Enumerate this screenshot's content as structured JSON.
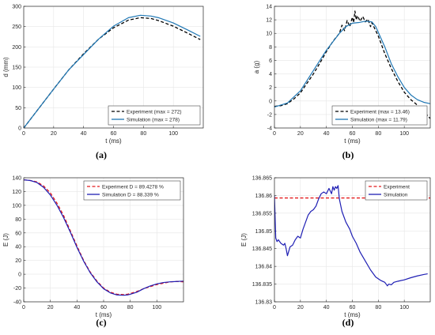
{
  "chart_data": [
    {
      "type": "line",
      "caption": "(a)",
      "xlabel": "t (ms)",
      "ylabel": "d (mm)",
      "xlim": [
        0,
        120
      ],
      "ylim": [
        0,
        300
      ],
      "xticks": [
        "0",
        "20",
        "40",
        "60",
        "80",
        "100"
      ],
      "yticks": [
        "0",
        "50",
        "100",
        "150",
        "200",
        "250",
        "300"
      ],
      "grid": true,
      "legend_position": "bottom-right",
      "series": [
        {
          "name": "Experiment (max = 272)",
          "color": "#000000",
          "style": "dashed",
          "x": [
            0,
            10,
            20,
            30,
            40,
            50,
            60,
            70,
            78,
            85,
            90,
            100,
            110,
            118
          ],
          "y": [
            0,
            48,
            96,
            143,
            183,
            219,
            247,
            266,
            272,
            270,
            265,
            251,
            233,
            218
          ]
        },
        {
          "name": "Simulation (max = 278)",
          "color": "#1f77b4",
          "style": "solid",
          "x": [
            0,
            10,
            20,
            30,
            40,
            50,
            60,
            70,
            78,
            85,
            90,
            100,
            110,
            118
          ],
          "y": [
            0,
            48,
            96,
            143,
            181,
            219,
            251,
            272,
            278,
            276,
            272,
            259,
            241,
            226
          ]
        }
      ]
    },
    {
      "type": "line",
      "caption": "(b)",
      "xlabel": "t (ms)",
      "ylabel": "a (g)",
      "xlim": [
        0,
        120
      ],
      "ylim": [
        -4,
        14
      ],
      "xticks": [
        "0",
        "20",
        "40",
        "60",
        "80",
        "100"
      ],
      "yticks": [
        "-4",
        "-2",
        "0",
        "2",
        "4",
        "6",
        "8",
        "10",
        "12",
        "14"
      ],
      "grid": true,
      "legend_position": "bottom-right",
      "series": [
        {
          "name": "Experiment (max = 13.46)",
          "color": "#000000",
          "style": "dashed",
          "x": [
            0,
            5,
            10,
            15,
            20,
            25,
            30,
            35,
            40,
            45,
            50,
            52,
            54,
            56,
            58,
            60,
            61,
            62,
            63,
            64,
            66,
            68,
            70,
            72,
            74,
            75,
            80,
            85,
            90,
            95,
            100,
            105,
            110,
            115,
            120
          ],
          "y": [
            -0.8,
            -0.7,
            -0.4,
            0.3,
            1.2,
            2.6,
            4.0,
            5.6,
            7.3,
            8.8,
            10.0,
            11.2,
            10.4,
            11.9,
            11.0,
            12.4,
            11.6,
            13.3,
            12.0,
            12.6,
            11.8,
            12.5,
            11.7,
            12.1,
            11.0,
            11.6,
            9.6,
            7.0,
            4.8,
            2.9,
            1.3,
            0.2,
            -0.6,
            -1.6,
            -2.6
          ]
        },
        {
          "name": "Simulation (max = 11.79)",
          "color": "#1f77b4",
          "style": "solid",
          "x": [
            0,
            10,
            20,
            30,
            40,
            50,
            55,
            60,
            65,
            70,
            75,
            78,
            85,
            90,
            95,
            100,
            105,
            110,
            115,
            120
          ],
          "y": [
            -0.9,
            -0.3,
            1.5,
            4.5,
            7.5,
            10.0,
            11.0,
            11.5,
            11.6,
            11.8,
            11.7,
            11.0,
            8.0,
            5.5,
            3.6,
            2.0,
            0.9,
            0.2,
            -0.2,
            -0.4
          ]
        }
      ]
    },
    {
      "type": "line",
      "caption": "(c)",
      "xlabel": "t (ms)",
      "ylabel": "E (J)",
      "xlim": [
        0,
        120
      ],
      "ylim": [
        -40,
        140
      ],
      "xticks": [
        "0",
        "20",
        "40",
        "60",
        "80",
        "100"
      ],
      "yticks": [
        "-40",
        "-20",
        "0",
        "20",
        "40",
        "60",
        "80",
        "100",
        "120",
        "140"
      ],
      "grid": true,
      "legend_position": "top-right",
      "series": [
        {
          "name": "Experiment D = 89.4278 %",
          "color": "#e41a1c",
          "style": "dashed",
          "x": [
            0,
            5,
            10,
            15,
            20,
            25,
            30,
            35,
            40,
            45,
            50,
            55,
            60,
            65,
            70,
            75,
            78,
            80,
            85,
            90,
            95,
            100,
            105,
            110,
            115,
            120
          ],
          "y": [
            137,
            136,
            134,
            128,
            118,
            103,
            85,
            63,
            41,
            20,
            3,
            -10,
            -20,
            -26,
            -29,
            -29.5,
            -29,
            -28,
            -25,
            -21,
            -18,
            -15,
            -13,
            -11,
            -10.5,
            -11
          ]
        },
        {
          "name": "Simulation D = 88.339 %",
          "color": "#1f1fb4",
          "style": "solid",
          "x": [
            0,
            5,
            10,
            15,
            20,
            25,
            30,
            35,
            40,
            45,
            50,
            55,
            60,
            65,
            70,
            75,
            78,
            80,
            85,
            90,
            95,
            100,
            105,
            110,
            115,
            120
          ],
          "y": [
            137,
            136,
            133,
            126,
            115,
            100,
            82,
            61,
            39,
            19,
            2,
            -11,
            -21,
            -27,
            -30,
            -30.5,
            -30,
            -29,
            -26,
            -21,
            -17,
            -14,
            -12,
            -11,
            -10.5,
            -10
          ]
        }
      ]
    },
    {
      "type": "line",
      "caption": "(d)",
      "xlabel": "t (ms)",
      "ylabel": "E (J)",
      "xlim": [
        0,
        120
      ],
      "ylim": [
        136.83,
        136.865
      ],
      "xticks": [
        "0",
        "20",
        "40",
        "60",
        "80",
        "100"
      ],
      "yticks": [
        "136.83",
        "136.835",
        "136.84",
        "136.845",
        "136.85",
        "136.855",
        "136.86",
        "136.865"
      ],
      "grid": true,
      "legend_position": "top-right",
      "series": [
        {
          "name": "Experiment",
          "color": "#e41a1c",
          "style": "dashed",
          "x": [
            0,
            120
          ],
          "y": [
            136.8593,
            136.8593
          ]
        },
        {
          "name": "Simulation",
          "color": "#1f1fb4",
          "style": "solid",
          "x": [
            0,
            1,
            2,
            3,
            5,
            7,
            8,
            9,
            10,
            12,
            14,
            16,
            18,
            20,
            22,
            24,
            26,
            28,
            30,
            32,
            34,
            36,
            38,
            40,
            42,
            44,
            45,
            46,
            47,
            48,
            49,
            50,
            52,
            55,
            58,
            60,
            63,
            66,
            70,
            74,
            78,
            82,
            85,
            87,
            88,
            90,
            92,
            95,
            100,
            105,
            110,
            115,
            118
          ],
          "y": [
            136.86,
            136.848,
            136.847,
            136.8475,
            136.8465,
            136.846,
            136.8465,
            136.845,
            136.843,
            136.8455,
            136.846,
            136.8475,
            136.8485,
            136.848,
            136.8505,
            136.8525,
            136.8545,
            136.8555,
            136.856,
            136.857,
            136.859,
            136.8605,
            136.861,
            136.8605,
            136.862,
            136.8605,
            136.8625,
            136.8615,
            136.8625,
            136.862,
            136.8628,
            136.859,
            136.8555,
            136.8525,
            136.8505,
            136.8485,
            136.8465,
            136.844,
            136.8415,
            136.839,
            136.837,
            136.836,
            136.8355,
            136.8345,
            136.835,
            136.8348,
            136.8355,
            136.8358,
            136.8362,
            136.8368,
            136.8373,
            136.8377,
            136.8379
          ]
        }
      ]
    }
  ]
}
